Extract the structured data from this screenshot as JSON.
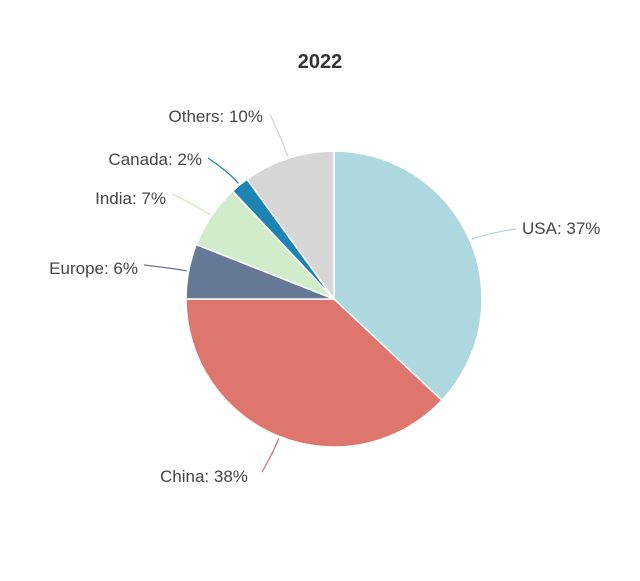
{
  "chart_data": {
    "type": "pie",
    "title": "2022",
    "slices": [
      {
        "label": "USA",
        "value": 37,
        "display": "USA: 37%",
        "color": "#aed8df"
      },
      {
        "label": "China",
        "value": 38,
        "display": "China: 38%",
        "color": "#df766d"
      },
      {
        "label": "Europe",
        "value": 6,
        "display": "Europe: 6%",
        "color": "#657895"
      },
      {
        "label": "India",
        "value": 7,
        "display": "India: 7%",
        "color": "#d0eccb"
      },
      {
        "label": "Canada",
        "value": 2,
        "display": "Canada: 2%",
        "color": "#1d83b3"
      },
      {
        "label": "Others",
        "value": 10,
        "display": "Others: 10%",
        "color": "#d6d6d6"
      }
    ],
    "legend": "none",
    "label_style": "outside-with-leader-lines"
  }
}
